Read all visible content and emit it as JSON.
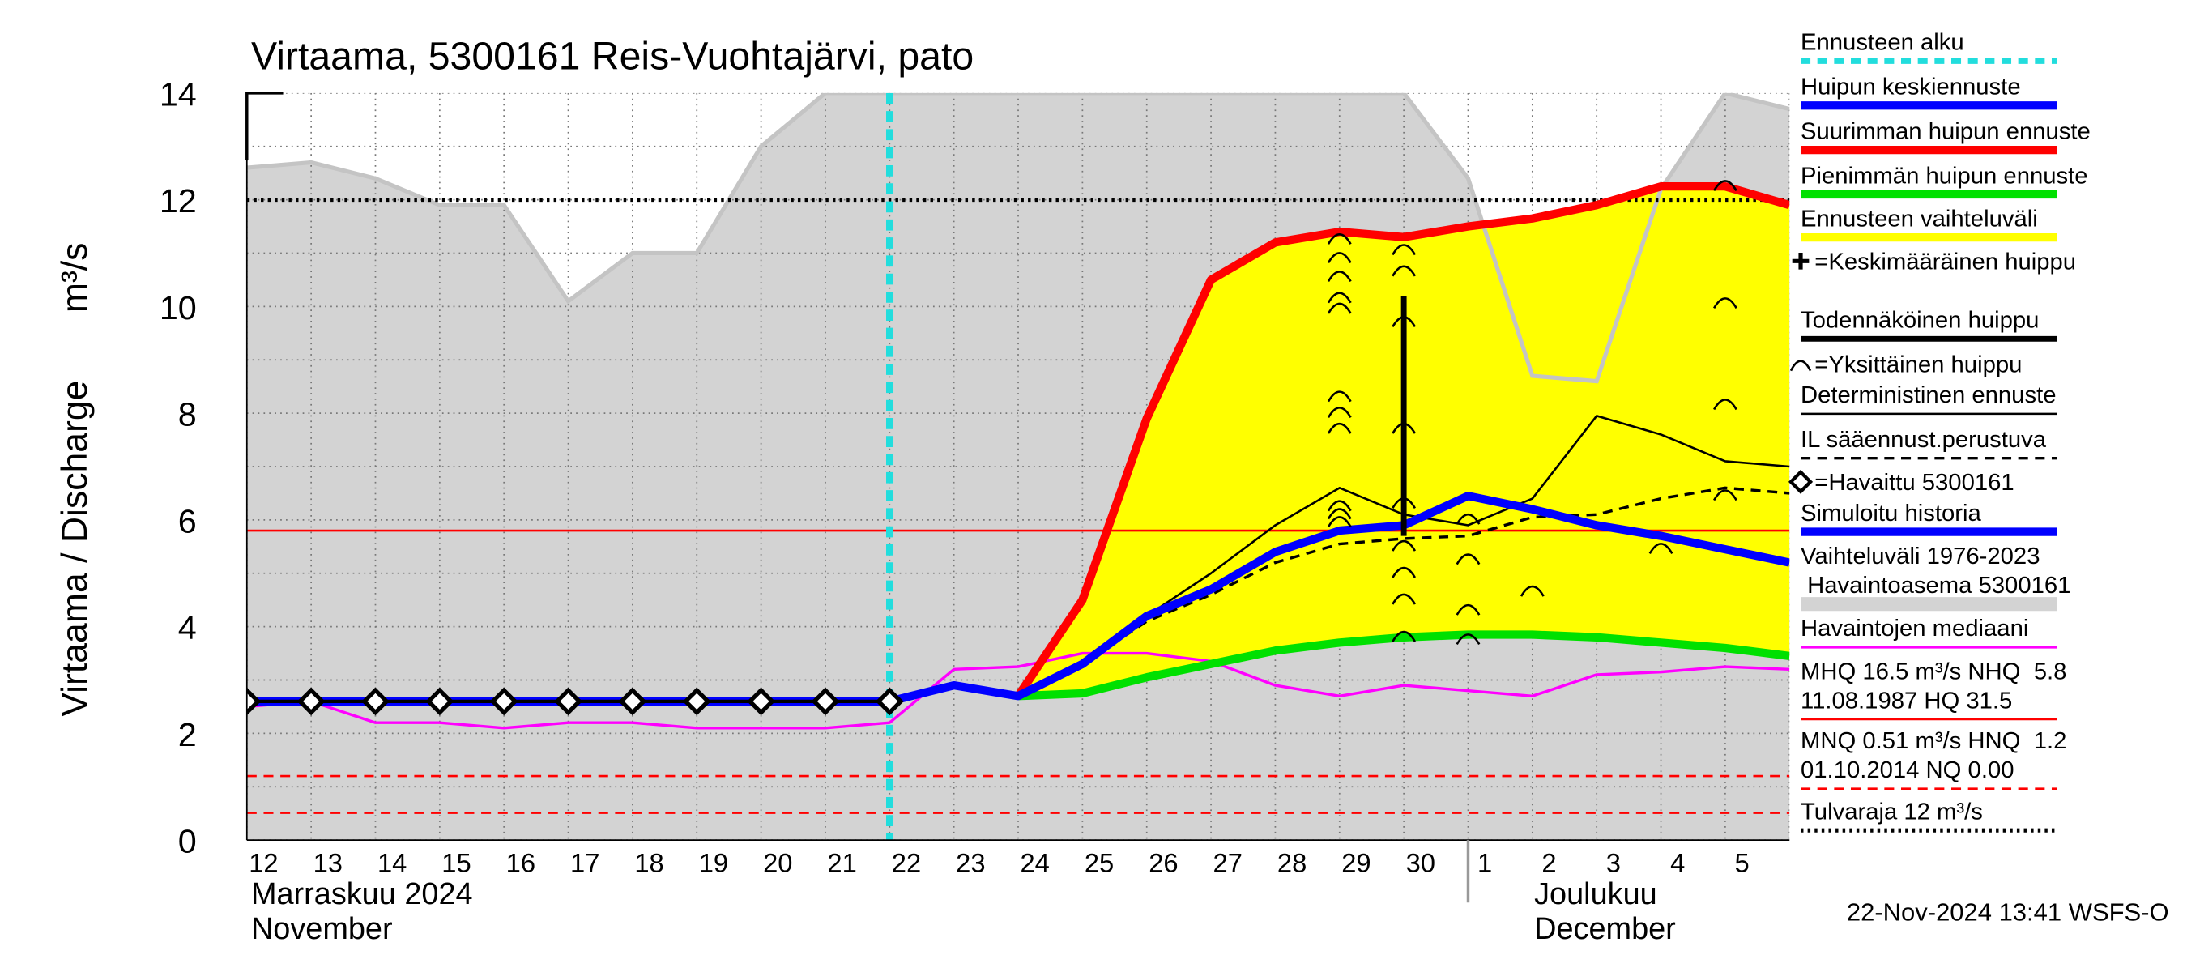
{
  "chart_data": {
    "type": "line",
    "title": "Virtaama, 5300161 Reis-Vuohtajärvi, pato",
    "y_label": "Virtaama / Discharge",
    "y_unit": "m³/s",
    "categories": [
      "12",
      "13",
      "14",
      "15",
      "16",
      "17",
      "18",
      "19",
      "20",
      "21",
      "22",
      "23",
      "24",
      "25",
      "26",
      "27",
      "28",
      "29",
      "30",
      "1",
      "2",
      "3",
      "4",
      "5",
      null
    ],
    "month_labels": [
      [
        "Marraskuu 2024",
        "November"
      ],
      [
        "Joulukuu",
        "December"
      ]
    ],
    "footer": "22-Nov-2024 13:41 WSFS-O",
    "ylim": [
      0,
      14
    ],
    "yticks": [
      0,
      2,
      4,
      6,
      8,
      10,
      12,
      14
    ],
    "yminorticks": [
      1,
      3,
      5,
      7,
      9,
      11,
      13
    ],
    "grid": true,
    "forecast_start": "22",
    "forecast_start_color": "#22dddd",
    "band": {
      "color": "#d3d3d3",
      "edge_color": "#c4c4c4",
      "upper": [
        12.6,
        12.7,
        12.4,
        11.9,
        11.9,
        10.1,
        11.0,
        11.0,
        13.0,
        14,
        14,
        14,
        14,
        14,
        14,
        14,
        14,
        14,
        14,
        12.4,
        8.7,
        8.6,
        12.2,
        14,
        13.7
      ],
      "lower": [
        0,
        0,
        0,
        0,
        0,
        0,
        0,
        0,
        0,
        0,
        0,
        0,
        0,
        0,
        0,
        0,
        0,
        0,
        0,
        0,
        0,
        0,
        0,
        0,
        0
      ]
    },
    "forecast_fill": "#ffff00",
    "series": [
      {
        "color": "#ff00ff",
        "width": 2,
        "style": "solid",
        "values": [
          2.5,
          2.6,
          2.2,
          2.2,
          2.1,
          2.2,
          2.2,
          2.1,
          2.1,
          2.1,
          2.2,
          3.2,
          3.25,
          3.5,
          3.5,
          3.35,
          2.9,
          2.7,
          2.9,
          2.8,
          2.7,
          3.1,
          3.15,
          3.25,
          3.2
        ]
      },
      {
        "color": "#ff0000",
        "width": 6,
        "style": "solid",
        "values": [
          null,
          null,
          null,
          null,
          null,
          null,
          null,
          null,
          null,
          null,
          null,
          null,
          2.7,
          4.5,
          7.9,
          10.5,
          11.2,
          11.4,
          11.3,
          11.5,
          11.65,
          11.9,
          12.25,
          12.25,
          11.9
        ]
      },
      {
        "color": "#00e000",
        "width": 6,
        "style": "solid",
        "values": [
          null,
          null,
          null,
          null,
          null,
          null,
          null,
          null,
          null,
          null,
          null,
          null,
          2.7,
          2.75,
          3.05,
          3.3,
          3.55,
          3.7,
          3.8,
          3.85,
          3.85,
          3.8,
          3.7,
          3.6,
          3.45
        ]
      },
      {
        "color": "#000000",
        "width": 1.5,
        "style": "solid",
        "values": [
          null,
          null,
          null,
          null,
          null,
          null,
          null,
          null,
          null,
          null,
          2.6,
          2.9,
          2.7,
          3.35,
          4.2,
          5.0,
          5.9,
          6.6,
          6.1,
          5.9,
          6.4,
          7.95,
          7.6,
          7.1,
          7.0
        ]
      },
      {
        "color": "#000000",
        "width": 2,
        "style": "dashed",
        "values": [
          null,
          null,
          null,
          null,
          null,
          null,
          null,
          null,
          null,
          null,
          null,
          null,
          null,
          3.3,
          4.1,
          4.6,
          5.2,
          5.55,
          5.65,
          5.7,
          6.05,
          6.1,
          6.4,
          6.6,
          6.5
        ]
      },
      {
        "color": "#0000ff",
        "width": 6,
        "style": "solid",
        "values": [
          2.6,
          2.6,
          2.6,
          2.6,
          2.6,
          2.6,
          2.6,
          2.6,
          2.6,
          2.6,
          2.6,
          null,
          null,
          null,
          null,
          null,
          null,
          null,
          null,
          null,
          null,
          null,
          null,
          null,
          null
        ]
      },
      {
        "color": "#0000ff",
        "width": 6,
        "style": "solid",
        "values": [
          null,
          null,
          null,
          null,
          null,
          null,
          null,
          null,
          null,
          null,
          2.6,
          2.9,
          2.7,
          3.3,
          4.2,
          4.7,
          5.4,
          5.8,
          5.9,
          6.45,
          6.2,
          5.9,
          5.7,
          5.45,
          5.2
        ]
      },
      {
        "color": "#000000",
        "width": 2.5,
        "style": "solid",
        "marker": "diamond",
        "values": [
          2.6,
          2.6,
          2.6,
          2.6,
          2.6,
          2.6,
          2.6,
          2.6,
          2.6,
          2.6,
          2.6,
          null,
          null,
          null,
          null,
          null,
          null,
          null,
          null,
          null,
          null,
          null,
          null,
          null,
          null
        ]
      }
    ],
    "peaks": {
      "color": "#000000",
      "x": [
        "29",
        "29",
        "29",
        "29",
        "29",
        "29",
        "29",
        "29",
        "29",
        "29",
        "29",
        "30",
        "30",
        "30",
        "30",
        "30",
        "30",
        "30",
        "30",
        "30",
        "1",
        "1",
        "1",
        "1",
        "2",
        "4",
        "5",
        "5",
        "5",
        "5"
      ],
      "values": [
        11.3,
        10.95,
        10.6,
        10.2,
        10.0,
        8.35,
        8.05,
        7.75,
        6.3,
        6.15,
        6.0,
        11.1,
        10.7,
        9.75,
        7.75,
        6.35,
        5.55,
        5.05,
        4.55,
        3.85,
        6.05,
        5.3,
        4.35,
        3.8,
        4.7,
        5.5,
        12.3,
        10.1,
        8.2,
        6.5
      ]
    },
    "probable_peak": {
      "x": "30",
      "low": 5.7,
      "high": 10.2,
      "color": "#000000"
    },
    "ref_lines": [
      {
        "value": 12,
        "color": "#000000",
        "style": "dotted"
      },
      {
        "value": 5.8,
        "color": "#ff0000",
        "style": "solid"
      },
      {
        "value": 1.2,
        "color": "#ff0000",
        "style": "dashed"
      },
      {
        "value": 0.51,
        "color": "#ff0000",
        "style": "dashed"
      }
    ],
    "legend": [
      {
        "label": "Ennusteen alku",
        "color": "#22dddd",
        "style": "dashed",
        "width": 4
      },
      {
        "label": "Huipun keskiennuste",
        "color": "#0000ff",
        "style": "solid",
        "width": 6
      },
      {
        "label": "Suurimman huipun ennuste",
        "color": "#ff0000",
        "style": "solid",
        "width": 6
      },
      {
        "label": "Pienimmän huipun ennuste",
        "color": "#00e000",
        "style": "solid",
        "width": 6
      },
      {
        "label": "Ennusteen vaihteluväli",
        "color": "#ffff00",
        "style": "solid",
        "width": 6
      },
      {
        "label": "=Keskimääräinen huippu",
        "color": "#000000",
        "style": "plus"
      },
      {
        "label": "Todennäköinen huippu",
        "color": "#000000",
        "style": "solid",
        "width": 4
      },
      {
        "label": "=Yksittäinen huippu",
        "color": "#000000",
        "style": "arc"
      },
      {
        "label": "Deterministinen ennuste",
        "color": "#000000",
        "style": "solid",
        "width": 1.5
      },
      {
        "label": "IL sääennust.perustuva",
        "color": "#000000",
        "style": "dashed",
        "width": 2
      },
      {
        "label": "=Havaittu 5300161",
        "color": "#000000",
        "style": "diamond"
      },
      {
        "label": "Simuloitu historia",
        "color": "#0000ff",
        "style": "solid",
        "width": 6
      },
      {
        "label": "Vaihteluväli 1976-2023",
        "label2": " Havaintoasema 5300161",
        "color": "#d3d3d3",
        "style": "solid",
        "width": 10
      },
      {
        "label": "Havaintojen mediaani",
        "color": "#ff00ff",
        "style": "solid",
        "width": 2
      },
      {
        "label": "MHQ 16.5 m³/s NHQ  5.8",
        "label2": "11.08.1987 HQ 31.5",
        "color": "#ff0000",
        "style": "solid",
        "width": 1.5
      },
      {
        "label": "MNQ 0.51 m³/s HNQ  1.2",
        "label2": "01.10.2014 NQ 0.00",
        "color": "#ff0000",
        "style": "dashed",
        "width": 1.5
      },
      {
        "label": "Tulvaraja 12 m³/s",
        "color": "#000000",
        "style": "dotted",
        "width": 3
      }
    ]
  }
}
